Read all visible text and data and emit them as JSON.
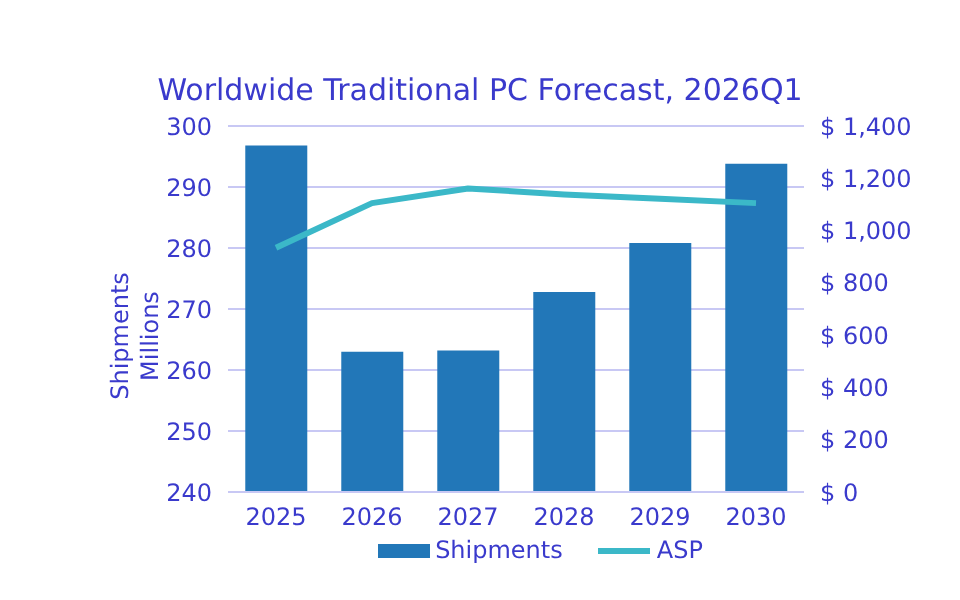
{
  "chart_data": {
    "type": "bar",
    "title": "Worldwide Traditional PC Forecast, 2026Q1",
    "ylabel": "Shipments\nMillions",
    "categories": [
      "2025",
      "2026",
      "2027",
      "2028",
      "2029",
      "2030"
    ],
    "series": [
      {
        "name": "Shipments",
        "color": "#2277b8",
        "values": [
          296.8,
          263.0,
          263.2,
          272.8,
          280.8,
          293.8
        ]
      },
      {
        "name": "ASP",
        "type": "line",
        "axis": "y2",
        "color": "#3bb8c8",
        "marker": "none",
        "values": [
          934,
          1105,
          1161,
          1138,
          1122,
          1105
        ]
      }
    ],
    "ylim": [
      240,
      300
    ],
    "yticks": [
      240,
      250,
      260,
      270,
      280,
      290,
      300
    ],
    "y2lim": [
      0,
      1400
    ],
    "y2ticks": [
      {
        "value": 0,
        "label": "$ 0"
      },
      {
        "value": 200,
        "label": "$ 200"
      },
      {
        "value": 400,
        "label": "$ 400"
      },
      {
        "value": 600,
        "label": "$ 600"
      },
      {
        "value": 800,
        "label": "$ 800"
      },
      {
        "value": 1000,
        "label": "$ 1,000"
      },
      {
        "value": 1200,
        "label": "$ 1,200"
      },
      {
        "value": 1400,
        "label": "$ 1,400"
      }
    ],
    "grid": "y",
    "legend": "bottom"
  }
}
